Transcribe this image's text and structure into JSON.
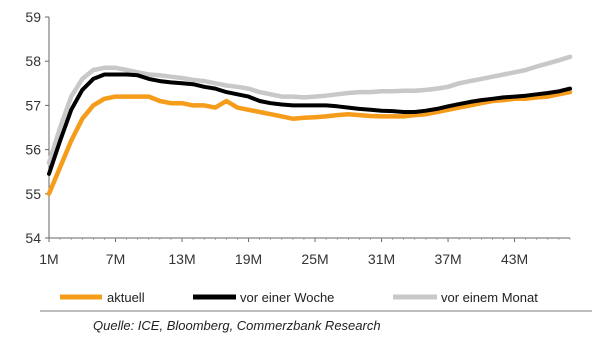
{
  "chart_data": {
    "type": "line",
    "ylim": [
      54,
      59
    ],
    "yticks": [
      54,
      55,
      56,
      57,
      58,
      59
    ],
    "x_tick_labels": [
      "1M",
      "7M",
      "13M",
      "19M",
      "25M",
      "31M",
      "37M",
      "43M"
    ],
    "x_tick_positions": [
      1,
      7,
      13,
      19,
      25,
      31,
      37,
      43
    ],
    "x_range": [
      1,
      48
    ],
    "grid": false,
    "legend_position": "bottom",
    "series": [
      {
        "name": "aktuell",
        "color": "#f59c1a",
        "x": [
          1,
          2,
          3,
          4,
          5,
          6,
          7,
          8,
          9,
          10,
          11,
          12,
          13,
          14,
          15,
          16,
          17,
          18,
          19,
          20,
          21,
          22,
          23,
          24,
          25,
          26,
          27,
          28,
          29,
          30,
          31,
          32,
          33,
          34,
          35,
          36,
          37,
          38,
          39,
          40,
          41,
          42,
          43,
          44,
          45,
          46,
          47,
          48
        ],
        "values": [
          55.0,
          55.6,
          56.2,
          56.7,
          57.0,
          57.15,
          57.2,
          57.2,
          57.2,
          57.2,
          57.1,
          57.05,
          57.05,
          57.0,
          57.0,
          56.95,
          57.1,
          56.95,
          56.9,
          56.85,
          56.8,
          56.75,
          56.7,
          56.72,
          56.73,
          56.75,
          56.78,
          56.8,
          56.78,
          56.76,
          56.75,
          56.75,
          56.75,
          56.78,
          56.8,
          56.85,
          56.9,
          56.95,
          57.0,
          57.05,
          57.1,
          57.12,
          57.15,
          57.15,
          57.18,
          57.2,
          57.25,
          57.3
        ]
      },
      {
        "name": "vor einer Woche",
        "color": "#000000",
        "x": [
          1,
          2,
          3,
          4,
          5,
          6,
          7,
          8,
          9,
          10,
          11,
          12,
          13,
          14,
          15,
          16,
          17,
          18,
          19,
          20,
          21,
          22,
          23,
          24,
          25,
          26,
          27,
          28,
          29,
          30,
          31,
          32,
          33,
          34,
          35,
          36,
          37,
          38,
          39,
          40,
          41,
          42,
          43,
          44,
          45,
          46,
          47,
          48
        ],
        "values": [
          55.45,
          56.2,
          56.9,
          57.35,
          57.6,
          57.7,
          57.7,
          57.7,
          57.68,
          57.6,
          57.55,
          57.52,
          57.5,
          57.48,
          57.42,
          57.38,
          57.3,
          57.25,
          57.2,
          57.1,
          57.05,
          57.02,
          57.0,
          57.0,
          57.0,
          57.0,
          56.98,
          56.95,
          56.92,
          56.9,
          56.88,
          56.87,
          56.85,
          56.85,
          56.88,
          56.92,
          56.98,
          57.03,
          57.08,
          57.12,
          57.15,
          57.18,
          57.2,
          57.22,
          57.25,
          57.28,
          57.32,
          57.38
        ]
      },
      {
        "name": "vor einem Monat",
        "color": "#c8c8c8",
        "x": [
          1,
          2,
          3,
          4,
          5,
          6,
          7,
          8,
          9,
          10,
          11,
          12,
          13,
          14,
          15,
          16,
          17,
          18,
          19,
          20,
          21,
          22,
          23,
          24,
          25,
          26,
          27,
          28,
          29,
          30,
          31,
          32,
          33,
          34,
          35,
          36,
          37,
          38,
          39,
          40,
          41,
          42,
          43,
          44,
          45,
          46,
          47,
          48
        ],
        "values": [
          55.7,
          56.5,
          57.2,
          57.6,
          57.8,
          57.85,
          57.85,
          57.8,
          57.75,
          57.7,
          57.68,
          57.65,
          57.62,
          57.58,
          57.55,
          57.5,
          57.45,
          57.42,
          57.38,
          57.3,
          57.25,
          57.2,
          57.2,
          57.18,
          57.2,
          57.22,
          57.25,
          57.28,
          57.3,
          57.3,
          57.32,
          57.32,
          57.33,
          57.33,
          57.35,
          57.38,
          57.42,
          57.5,
          57.55,
          57.6,
          57.65,
          57.7,
          57.75,
          57.8,
          57.88,
          57.95,
          58.02,
          58.1
        ]
      }
    ],
    "source": "Quelle: ICE, Bloomberg, Commerzbank Research"
  }
}
